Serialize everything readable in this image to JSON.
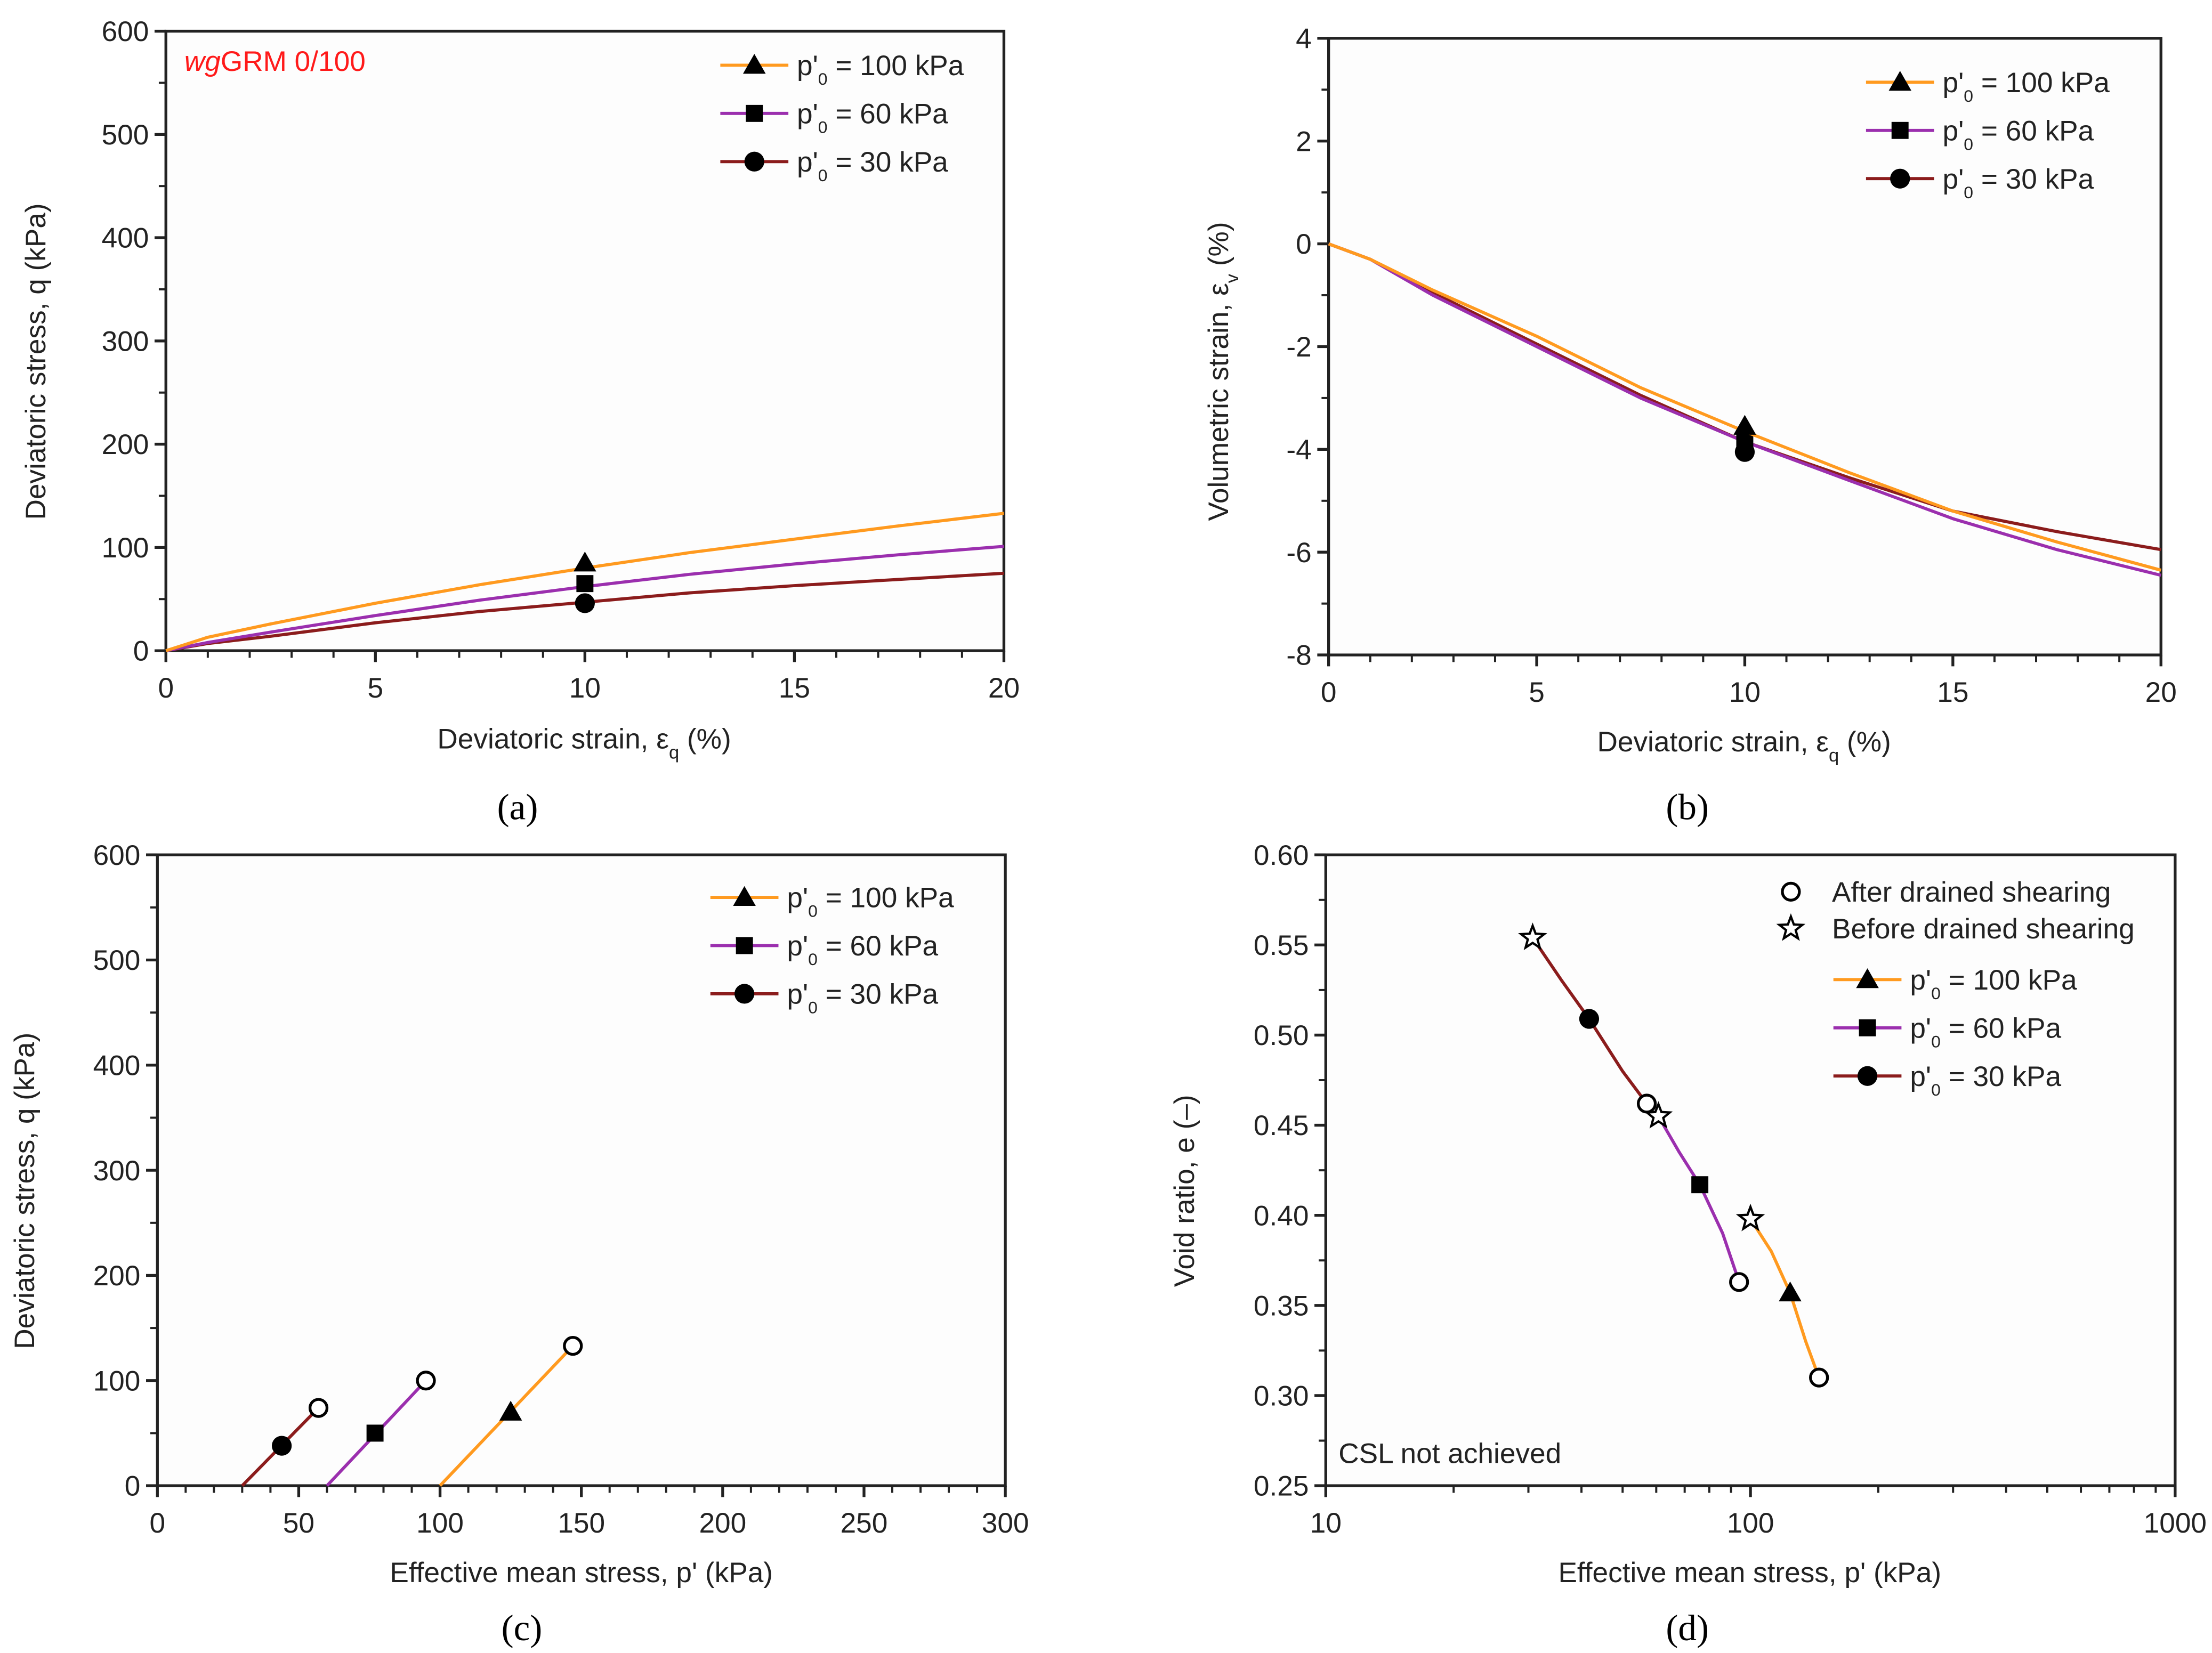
{
  "colors": {
    "p100": "#ff9a1f",
    "p60": "#9b2fae",
    "p30": "#8b1c1c",
    "annotation": "#ff1a1a"
  },
  "chart_data": [
    {
      "id": "a",
      "type": "line",
      "caption": "(a)",
      "xlabel": "Deviatoric strain, εq (%)",
      "ylabel": "Deviatoric stress, q (kPa)",
      "xlim": [
        0,
        20
      ],
      "ylim": [
        0,
        600
      ],
      "xticks": [
        0,
        5,
        10,
        15,
        20
      ],
      "yticks": [
        0,
        100,
        200,
        300,
        400,
        500,
        600
      ],
      "xscale": "linear",
      "grid": false,
      "legend": "top-right",
      "annotation": {
        "italic": "wg",
        "text": "GRM 0/100"
      },
      "series": [
        {
          "name": "p'₀ = 100 kPa",
          "color": "p100",
          "marker": "triangle",
          "x": [
            0,
            1,
            2.5,
            5,
            7.5,
            10,
            12.5,
            15,
            17.5,
            20
          ],
          "y": [
            0,
            13,
            26,
            46,
            64,
            80,
            95,
            108,
            121,
            133
          ],
          "marker_points": [
            [
              10,
              85
            ]
          ]
        },
        {
          "name": "p'₀ = 60 kPa",
          "color": "p60",
          "marker": "square",
          "x": [
            0,
            1,
            2.5,
            5,
            7.5,
            10,
            12.5,
            15,
            17.5,
            20
          ],
          "y": [
            0,
            8,
            18,
            34,
            49,
            62,
            74,
            84,
            93,
            101
          ],
          "marker_points": [
            [
              10,
              65
            ]
          ]
        },
        {
          "name": "p'₀ = 30 kPa",
          "color": "p30",
          "marker": "circle",
          "x": [
            0,
            1,
            2.5,
            5,
            7.5,
            10,
            12.5,
            15,
            17.5,
            20
          ],
          "y": [
            0,
            7,
            14,
            27,
            38,
            47,
            56,
            63,
            69,
            75
          ],
          "marker_points": [
            [
              10,
              46
            ]
          ]
        }
      ]
    },
    {
      "id": "b",
      "type": "line",
      "caption": "(b)",
      "xlabel": "Deviatoric strain, εq (%)",
      "ylabel": "Volumetric strain, εv (%)",
      "xlim": [
        0,
        20
      ],
      "ylim": [
        -8,
        4
      ],
      "xticks": [
        0,
        5,
        10,
        15,
        20
      ],
      "yticks": [
        -8,
        -6,
        -4,
        -2,
        0,
        2,
        4
      ],
      "xscale": "linear",
      "grid": false,
      "legend": "top-right",
      "series": [
        {
          "name": "p'₀ = 100 kPa",
          "color": "p100",
          "marker": "triangle",
          "x": [
            0,
            1,
            2.5,
            5,
            7.5,
            10,
            12.5,
            15,
            17.5,
            20
          ],
          "y": [
            0,
            -0.3,
            -0.9,
            -1.8,
            -2.8,
            -3.65,
            -4.45,
            -5.2,
            -5.8,
            -6.35
          ],
          "marker_points": [
            [
              10,
              -3.55
            ]
          ]
        },
        {
          "name": "p'₀ = 60 kPa",
          "color": "p60",
          "marker": "square",
          "x": [
            0,
            1,
            2.5,
            5,
            7.5,
            10,
            12.5,
            15,
            17.5,
            20
          ],
          "y": [
            0,
            -0.3,
            -1.0,
            -2.0,
            -3.0,
            -3.85,
            -4.6,
            -5.35,
            -5.95,
            -6.45
          ],
          "marker_points": [
            [
              10,
              -3.85
            ]
          ]
        },
        {
          "name": "p'₀ = 30 kPa",
          "color": "p30",
          "marker": "circle",
          "x": [
            0,
            1,
            2.5,
            5,
            7.5,
            10,
            12.5,
            15,
            17.5,
            20
          ],
          "y": [
            0,
            -0.3,
            -0.95,
            -1.95,
            -2.95,
            -3.85,
            -4.55,
            -5.2,
            -5.6,
            -5.95
          ],
          "marker_points": [
            [
              10,
              -4.05
            ]
          ]
        }
      ]
    },
    {
      "id": "c",
      "type": "line",
      "caption": "(c)",
      "xlabel": "Effective mean stress, p' (kPa)",
      "ylabel": "Deviatoric stress, q (kPa)",
      "xlim": [
        0,
        300
      ],
      "ylim": [
        0,
        600
      ],
      "xticks": [
        0,
        50,
        100,
        150,
        200,
        250,
        300
      ],
      "yticks": [
        0,
        100,
        200,
        300,
        400,
        500,
        600
      ],
      "xscale": "linear",
      "grid": false,
      "legend": "top-right",
      "series": [
        {
          "name": "p'₀ = 100 kPa",
          "color": "p100",
          "marker": "triangle",
          "x": [
            100,
            147
          ],
          "y": [
            0,
            133
          ],
          "marker_points": [
            [
              125,
              70
            ]
          ],
          "end_open_circle": [
            147,
            133
          ]
        },
        {
          "name": "p'₀ = 60 kPa",
          "color": "p60",
          "marker": "square",
          "x": [
            60,
            95
          ],
          "y": [
            0,
            100
          ],
          "marker_points": [
            [
              77,
              50
            ]
          ],
          "end_open_circle": [
            95,
            100
          ]
        },
        {
          "name": "p'₀ = 30 kPa",
          "color": "p30",
          "marker": "circle",
          "x": [
            30,
            57
          ],
          "y": [
            0,
            74
          ],
          "marker_points": [
            [
              44,
              38
            ]
          ],
          "end_open_circle": [
            57,
            74
          ]
        }
      ]
    },
    {
      "id": "d",
      "type": "line",
      "caption": "(d)",
      "xlabel": "Effective mean stress, p' (kPa)",
      "ylabel": "Void ratio, e (–)",
      "xlim": [
        10,
        1000
      ],
      "ylim": [
        0.25,
        0.6
      ],
      "xticks": [
        10,
        100,
        1000
      ],
      "yticks": [
        0.25,
        0.3,
        0.35,
        0.4,
        0.45,
        0.5,
        0.55,
        0.6
      ],
      "xscale": "log",
      "grid": false,
      "legend": "top-right",
      "annotation": {
        "text": "CSL not achieved"
      },
      "legend_extra": [
        {
          "symbol": "open-circle",
          "label": "After drained shearing"
        },
        {
          "symbol": "star",
          "label": "Before drained shearing"
        }
      ],
      "series": [
        {
          "name": "p'₀ = 100 kPa",
          "color": "p100",
          "marker": "triangle",
          "x": [
            100,
            112,
            124,
            135,
            145
          ],
          "y": [
            0.398,
            0.38,
            0.357,
            0.33,
            0.31
          ],
          "marker_points": [
            [
              124,
              0.357
            ]
          ],
          "start_star": [
            100,
            0.398
          ],
          "end_open_circle": [
            145,
            0.31
          ]
        },
        {
          "name": "p'₀ = 60 kPa",
          "color": "p60",
          "marker": "square",
          "x": [
            60.7,
            68,
            76,
            86,
            94
          ],
          "y": [
            0.455,
            0.435,
            0.417,
            0.39,
            0.363
          ],
          "marker_points": [
            [
              76,
              0.417
            ]
          ],
          "start_star": [
            60.7,
            0.455
          ],
          "end_open_circle": [
            94,
            0.363
          ]
        },
        {
          "name": "p'₀ = 30 kPa",
          "color": "p30",
          "marker": "circle",
          "x": [
            30.7,
            36,
            41.7,
            50,
            57
          ],
          "y": [
            0.554,
            0.53,
            0.509,
            0.48,
            0.462
          ],
          "marker_points": [
            [
              41.7,
              0.509
            ]
          ],
          "start_star": [
            30.7,
            0.554
          ],
          "end_open_circle": [
            57,
            0.462
          ]
        }
      ]
    }
  ]
}
